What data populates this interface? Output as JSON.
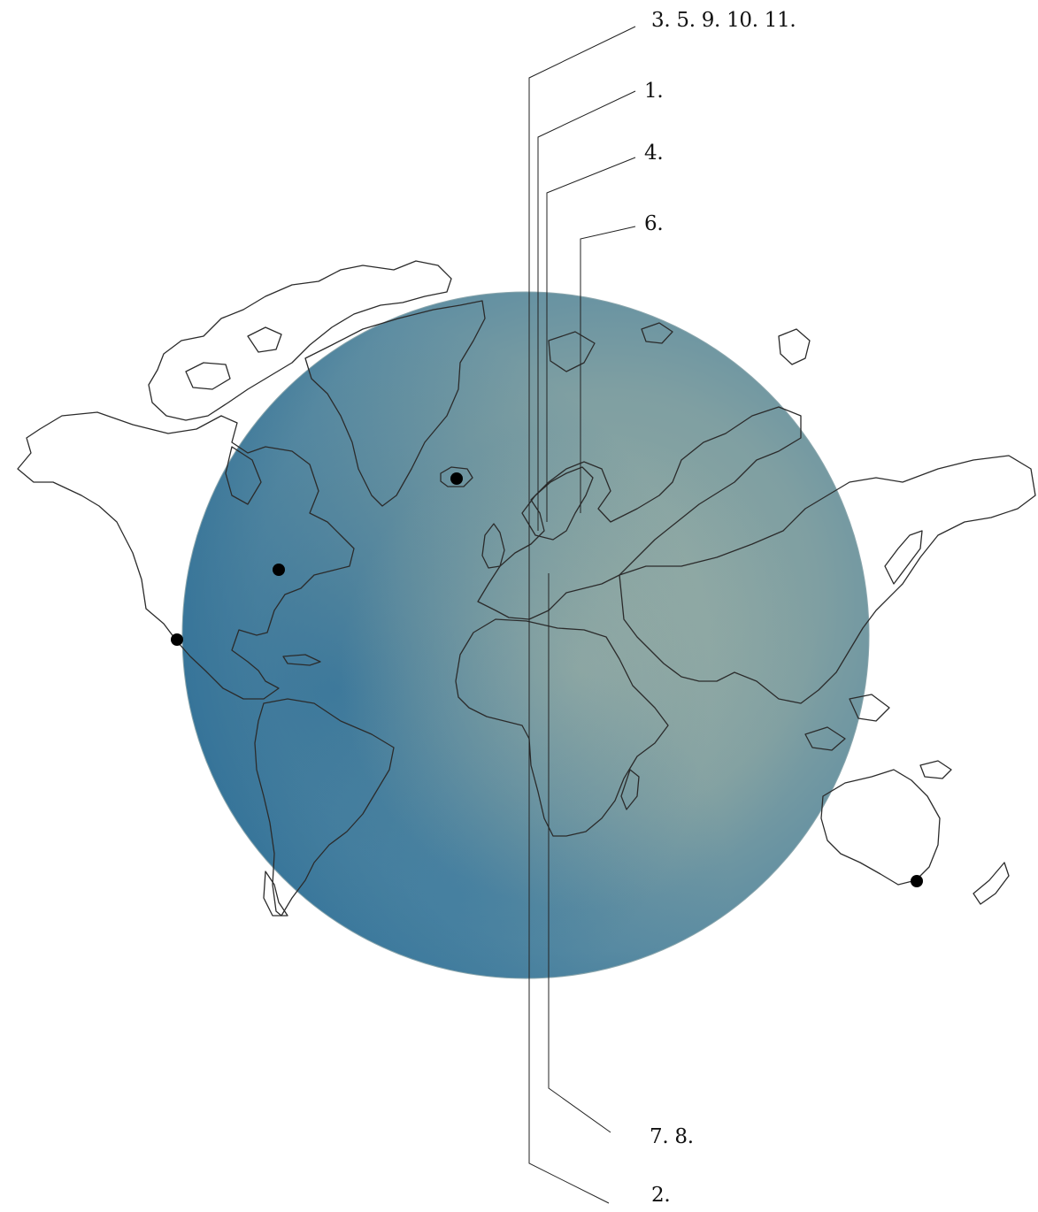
{
  "map": {
    "globe_color": "#5a8ea3",
    "coast_color": "#2a2a2a",
    "marker_color": "#000000",
    "locations": [
      "marker-1",
      "marker-2",
      "marker-3",
      "marker-4",
      "marker-5"
    ]
  },
  "callouts": [
    {
      "label": "3. 5. 9. 10. 11."
    },
    {
      "label": "1."
    },
    {
      "label": "4."
    },
    {
      "label": "6."
    },
    {
      "label": "7. 8."
    },
    {
      "label": "2."
    }
  ]
}
